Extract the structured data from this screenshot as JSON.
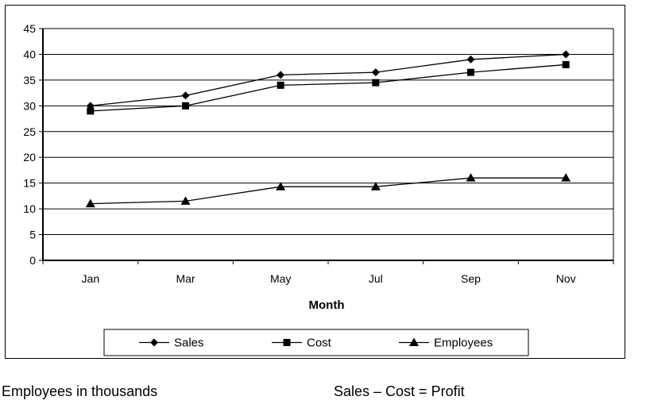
{
  "chart_data": {
    "type": "line",
    "categories": [
      "Jan",
      "Mar",
      "May",
      "Jul",
      "Sep",
      "Nov"
    ],
    "series": [
      {
        "name": "Sales",
        "marker": "diamond",
        "values": [
          30,
          32,
          36,
          36.5,
          39,
          40
        ]
      },
      {
        "name": "Cost",
        "marker": "square",
        "values": [
          29,
          30,
          34,
          34.5,
          36.5,
          38
        ]
      },
      {
        "name": "Employees",
        "marker": "triangle",
        "values": [
          11,
          11.5,
          14.3,
          14.3,
          16,
          16
        ]
      }
    ],
    "title": "",
    "xlabel": "Month",
    "ylabel": "",
    "ylim": [
      0,
      45
    ],
    "yticks": [
      "0",
      "5",
      "10",
      "15",
      "20",
      "25",
      "30",
      "35",
      "40",
      "45"
    ],
    "grid": "horizontal",
    "legend_position": "bottom"
  },
  "notes": {
    "left": "Employees in thousands",
    "right": "Sales – Cost = Profit"
  }
}
